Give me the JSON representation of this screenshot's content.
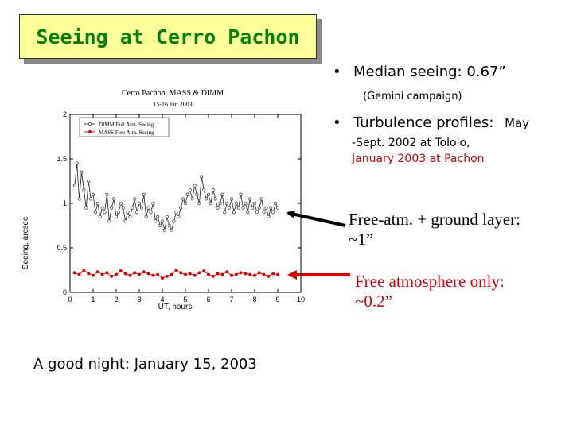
{
  "title": "Seeing at Cerro Pachon",
  "bullets": {
    "b1_marker": "•",
    "b1_text": "Median seeing: 0.67”",
    "b1_sub": "(Gemini campaign)",
    "b2_marker": "•",
    "b2_text": "Turbulence profiles:",
    "b2_tail": "May",
    "b2_line2": "-Sept. 2002 at Tololo,",
    "b2_line3": "January 2003 at  Pachon"
  },
  "annotations": {
    "upper_line1": "Free-atm. + ground layer:",
    "upper_line2": "~1”",
    "lower_line1": "Free atmosphere only:",
    "lower_line2": "~0.2”"
  },
  "caption": "A good night: January 15, 2003",
  "colors": {
    "title_text": "#008000",
    "title_bg": "#ffff99",
    "series_free": "#dd0000",
    "series_full": "#333333",
    "arrow_red": "#dd0000",
    "arrow_black": "#000000"
  },
  "chart_data": {
    "type": "line",
    "title": "Cerro Pachon, MASS & DIMM",
    "subtitle": "15-16 Jan 2003",
    "xlabel": "UT, hours",
    "ylabel": "Seeing, arcsec",
    "xlim": [
      0,
      10
    ],
    "ylim": [
      0,
      2
    ],
    "xticks": [
      0,
      1,
      2,
      3,
      4,
      5,
      6,
      7,
      8,
      9,
      10
    ],
    "yticks": [
      0,
      0.5,
      1,
      1.5,
      2
    ],
    "ytick_labels": [
      "0",
      "0.5",
      "1",
      "1.5",
      "2"
    ],
    "legend_position": "top-left",
    "series": [
      {
        "name": "DIMM Full Atm. Seeing",
        "color": "#333333",
        "marker": "open-circle",
        "x": [
          0.2,
          0.3,
          0.4,
          0.5,
          0.6,
          0.7,
          0.8,
          0.9,
          1.0,
          1.1,
          1.2,
          1.3,
          1.4,
          1.5,
          1.6,
          1.7,
          1.8,
          1.9,
          2.0,
          2.1,
          2.2,
          2.3,
          2.4,
          2.5,
          2.6,
          2.7,
          2.8,
          2.9,
          3.0,
          3.1,
          3.2,
          3.3,
          3.4,
          3.5,
          3.6,
          3.7,
          3.8,
          3.9,
          4.0,
          4.1,
          4.2,
          4.3,
          4.4,
          4.5,
          4.6,
          4.7,
          4.8,
          4.9,
          5.0,
          5.1,
          5.2,
          5.3,
          5.4,
          5.5,
          5.6,
          5.7,
          5.8,
          5.9,
          6.0,
          6.1,
          6.2,
          6.3,
          6.4,
          6.5,
          6.6,
          6.7,
          6.8,
          6.9,
          7.0,
          7.1,
          7.2,
          7.3,
          7.4,
          7.5,
          7.6,
          7.7,
          7.8,
          7.9,
          8.0,
          8.1,
          8.2,
          8.3,
          8.4,
          8.5,
          8.6,
          8.7,
          8.8,
          8.9,
          9.0
        ],
        "y": [
          1.2,
          1.45,
          1.05,
          1.35,
          1.15,
          0.95,
          1.25,
          1.05,
          1.1,
          0.9,
          1.0,
          0.85,
          0.95,
          0.9,
          1.1,
          0.8,
          0.95,
          1.05,
          0.85,
          0.9,
          1.0,
          0.95,
          0.8,
          0.9,
          0.85,
          0.95,
          1.05,
          0.9,
          1.0,
          0.95,
          1.1,
          0.85,
          0.95,
          0.9,
          1.0,
          0.8,
          0.85,
          0.75,
          0.8,
          0.7,
          0.85,
          0.75,
          0.7,
          0.8,
          0.9,
          0.85,
          0.95,
          1.05,
          1.0,
          1.1,
          1.15,
          1.05,
          1.2,
          1.1,
          1.0,
          1.3,
          1.15,
          1.05,
          1.1,
          1.0,
          1.15,
          1.05,
          0.95,
          1.0,
          1.1,
          0.9,
          1.0,
          0.95,
          1.05,
          0.9,
          1.0,
          0.95,
          1.1,
          0.95,
          1.0,
          0.9,
          1.05,
          0.95,
          1.0,
          0.9,
          0.95,
          1.05,
          0.9,
          0.95,
          0.85,
          0.95,
          0.9,
          1.0,
          0.95
        ]
      },
      {
        "name": "MASS Free Atm. Seeing",
        "color": "#dd0000",
        "marker": "filled-circle",
        "x": [
          0.2,
          0.4,
          0.6,
          0.8,
          1.0,
          1.2,
          1.4,
          1.6,
          1.8,
          2.0,
          2.2,
          2.4,
          2.6,
          2.8,
          3.0,
          3.2,
          3.4,
          3.6,
          3.8,
          4.0,
          4.2,
          4.4,
          4.6,
          4.8,
          5.0,
          5.2,
          5.4,
          5.6,
          5.8,
          6.0,
          6.2,
          6.4,
          6.6,
          6.8,
          7.0,
          7.2,
          7.4,
          7.6,
          7.8,
          8.0,
          8.2,
          8.4,
          8.6,
          8.8,
          9.0
        ],
        "y": [
          0.22,
          0.2,
          0.25,
          0.21,
          0.19,
          0.23,
          0.2,
          0.22,
          0.18,
          0.2,
          0.24,
          0.21,
          0.19,
          0.22,
          0.2,
          0.23,
          0.21,
          0.19,
          0.2,
          0.16,
          0.18,
          0.2,
          0.25,
          0.22,
          0.2,
          0.21,
          0.19,
          0.22,
          0.24,
          0.2,
          0.18,
          0.21,
          0.2,
          0.23,
          0.19,
          0.2,
          0.22,
          0.21,
          0.2,
          0.19,
          0.22,
          0.2,
          0.18,
          0.21,
          0.2
        ]
      }
    ]
  }
}
